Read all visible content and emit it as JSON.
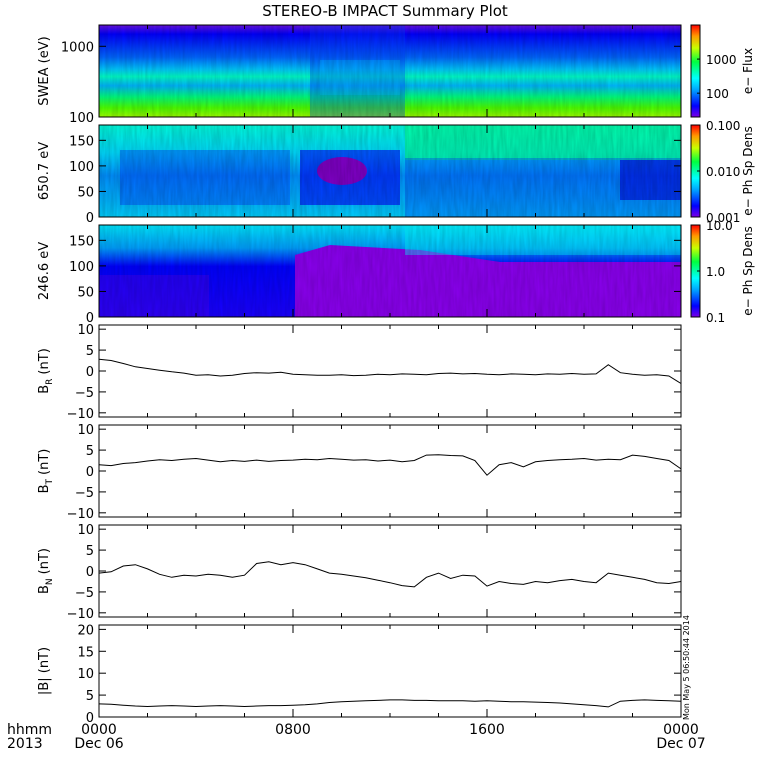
{
  "title": "STEREO-B IMPACT Summary Plot",
  "timestamp": "Mon May  5 06:50:44 2014",
  "time_axis": {
    "corner_top": "hhmm",
    "corner_bottom": "2013",
    "ticks": [
      {
        "t": 0,
        "label": "0000",
        "date": "Dec 06"
      },
      {
        "t": 8,
        "label": "0800",
        "date": ""
      },
      {
        "t": 16,
        "label": "1600",
        "date": ""
      },
      {
        "t": 24,
        "label": "0000",
        "date": "Dec 07"
      }
    ]
  },
  "colors": {
    "axis": "#000000",
    "trace": "#000000"
  },
  "chart_data": [
    {
      "type": "heatmap",
      "ylabel": "SWEA (eV)",
      "yscale": "log",
      "ylim": [
        100,
        2000
      ],
      "yticks": [
        {
          "v": 100,
          "label": "100"
        },
        {
          "v": 1000,
          "label": "1000"
        }
      ],
      "colorbar_label": "e− Flux",
      "colorbar_scale": "log",
      "colorbar_range": [
        20,
        10000
      ],
      "colorbar_ticks": [
        {
          "v": 100,
          "label": "100"
        },
        {
          "v": 1000,
          "label": "1000"
        }
      ]
    },
    {
      "type": "heatmap",
      "ylabel": "650.7 eV",
      "yscale": "linear",
      "ylim": [
        0,
        180
      ],
      "yticks": [
        {
          "v": 0,
          "label": "0"
        },
        {
          "v": 50,
          "label": "50"
        },
        {
          "v": 100,
          "label": "100"
        },
        {
          "v": 150,
          "label": "150"
        }
      ],
      "colorbar_label": "e− Ph Sp Dens",
      "colorbar_scale": "log",
      "colorbar_range": [
        0.001,
        0.1
      ],
      "colorbar_ticks": [
        {
          "v": 0.001,
          "label": "0.001"
        },
        {
          "v": 0.01,
          "label": "0.010"
        },
        {
          "v": 0.1,
          "label": "0.100"
        }
      ]
    },
    {
      "type": "heatmap",
      "ylabel": "246.6 eV",
      "yscale": "linear",
      "ylim": [
        0,
        180
      ],
      "yticks": [
        {
          "v": 0,
          "label": "0"
        },
        {
          "v": 50,
          "label": "50"
        },
        {
          "v": 100,
          "label": "100"
        },
        {
          "v": 150,
          "label": "150"
        }
      ],
      "colorbar_label": "e− Ph Sp Dens",
      "colorbar_scale": "log",
      "colorbar_range": [
        0.1,
        10
      ],
      "colorbar_ticks": [
        {
          "v": 0.1,
          "label": "0.1"
        },
        {
          "v": 1,
          "label": "1.0"
        },
        {
          "v": 10,
          "label": "10.0"
        }
      ]
    },
    {
      "type": "line",
      "ylabel": "B",
      "ylabel_sub": "R",
      "ylabel_unit": "(nT)",
      "ylim": [
        -11,
        11
      ],
      "yticks": [
        {
          "v": -10,
          "label": "−10"
        },
        {
          "v": -5,
          "label": "−5"
        },
        {
          "v": 0,
          "label": "0"
        },
        {
          "v": 5,
          "label": "5"
        },
        {
          "v": 10,
          "label": "10"
        }
      ],
      "series": [
        {
          "x": [
            0,
            0.5,
            1,
            1.5,
            2,
            2.5,
            3,
            3.5,
            4,
            4.5,
            5,
            5.5,
            6,
            6.5,
            7,
            7.5,
            8,
            8.5,
            9,
            9.5,
            10,
            10.5,
            11,
            11.5,
            12,
            12.5,
            13,
            13.5,
            14,
            14.5,
            15,
            15.5,
            16,
            16.5,
            17,
            17.5,
            18,
            18.5,
            19,
            19.5,
            20,
            20.5,
            21,
            21.5,
            22,
            22.5,
            23,
            23.5,
            24
          ],
          "y": [
            2.8,
            2.5,
            1.8,
            1.0,
            0.6,
            0.2,
            -0.2,
            -0.5,
            -1.0,
            -0.9,
            -1.2,
            -1.0,
            -0.6,
            -0.4,
            -0.5,
            -0.3,
            -0.8,
            -0.9,
            -1.0,
            -1.0,
            -0.9,
            -1.1,
            -1.0,
            -0.8,
            -0.9,
            -0.7,
            -0.8,
            -0.9,
            -0.6,
            -0.5,
            -0.7,
            -0.6,
            -0.8,
            -0.9,
            -0.7,
            -0.8,
            -0.9,
            -0.7,
            -0.8,
            -0.6,
            -0.8,
            -0.7,
            1.5,
            -0.4,
            -0.8,
            -1.0,
            -0.9,
            -1.2,
            -3.0
          ]
        }
      ]
    },
    {
      "type": "line",
      "ylabel": "B",
      "ylabel_sub": "T",
      "ylabel_unit": "(nT)",
      "ylim": [
        -11,
        11
      ],
      "yticks": [
        {
          "v": -10,
          "label": "−10"
        },
        {
          "v": -5,
          "label": "−5"
        },
        {
          "v": 0,
          "label": "0"
        },
        {
          "v": 5,
          "label": "5"
        },
        {
          "v": 10,
          "label": "10"
        }
      ],
      "series": [
        {
          "x": [
            0,
            0.5,
            1,
            1.5,
            2,
            2.5,
            3,
            3.5,
            4,
            4.5,
            5,
            5.5,
            6,
            6.5,
            7,
            7.5,
            8,
            8.5,
            9,
            9.5,
            10,
            10.5,
            11,
            11.5,
            12,
            12.5,
            13,
            13.5,
            14,
            14.5,
            15,
            15.5,
            16,
            16.5,
            17,
            17.5,
            18,
            18.5,
            19,
            19.5,
            20,
            20.5,
            21,
            21.5,
            22,
            22.5,
            23,
            23.5,
            24
          ],
          "y": [
            1.5,
            1.3,
            1.8,
            2.0,
            2.4,
            2.7,
            2.5,
            2.8,
            3.0,
            2.6,
            2.2,
            2.5,
            2.3,
            2.6,
            2.3,
            2.5,
            2.6,
            2.8,
            2.7,
            3.0,
            2.8,
            2.6,
            2.7,
            2.4,
            2.6,
            2.2,
            2.5,
            3.8,
            3.9,
            3.7,
            3.6,
            2.5,
            -1.0,
            1.5,
            2.0,
            1.0,
            2.2,
            2.5,
            2.7,
            2.8,
            3.0,
            2.6,
            2.8,
            2.7,
            3.8,
            3.5,
            3.0,
            2.5,
            0.5
          ]
        }
      ]
    },
    {
      "type": "line",
      "ylabel": "B",
      "ylabel_sub": "N",
      "ylabel_unit": "(nT)",
      "ylim": [
        -11,
        11
      ],
      "yticks": [
        {
          "v": -10,
          "label": "−10"
        },
        {
          "v": -5,
          "label": "−5"
        },
        {
          "v": 0,
          "label": "0"
        },
        {
          "v": 5,
          "label": "5"
        },
        {
          "v": 10,
          "label": "10"
        }
      ],
      "series": [
        {
          "x": [
            0,
            0.5,
            1,
            1.5,
            2,
            2.5,
            3,
            3.5,
            4,
            4.5,
            5,
            5.5,
            6,
            6.5,
            7,
            7.5,
            8,
            8.5,
            9,
            9.5,
            10,
            10.5,
            11,
            11.5,
            12,
            12.5,
            13,
            13.5,
            14,
            14.5,
            15,
            15.5,
            16,
            16.5,
            17,
            17.5,
            18,
            18.5,
            19,
            19.5,
            20,
            20.5,
            21,
            21.5,
            22,
            22.5,
            23,
            23.5,
            24
          ],
          "y": [
            -0.5,
            -0.2,
            1.2,
            1.5,
            0.5,
            -0.8,
            -1.5,
            -1.0,
            -1.2,
            -0.8,
            -1.0,
            -1.5,
            -1.0,
            1.8,
            2.2,
            1.5,
            2.0,
            1.5,
            0.5,
            -0.5,
            -0.8,
            -1.2,
            -1.6,
            -2.2,
            -2.8,
            -3.5,
            -3.8,
            -1.5,
            -0.5,
            -1.8,
            -1.0,
            -1.2,
            -3.6,
            -2.5,
            -3.0,
            -3.2,
            -2.5,
            -2.8,
            -2.3,
            -2.0,
            -2.5,
            -2.8,
            -0.5,
            -1.0,
            -1.5,
            -2.0,
            -2.8,
            -3.0,
            -2.5
          ]
        }
      ]
    },
    {
      "type": "line",
      "ylabel": "|B| (nT)",
      "ylim": [
        0,
        21
      ],
      "yticks": [
        {
          "v": 0,
          "label": "0"
        },
        {
          "v": 5,
          "label": "5"
        },
        {
          "v": 10,
          "label": "10"
        },
        {
          "v": 15,
          "label": "15"
        },
        {
          "v": 20,
          "label": "20"
        }
      ],
      "series": [
        {
          "x": [
            0,
            0.5,
            1,
            1.5,
            2,
            2.5,
            3,
            3.5,
            4,
            4.5,
            5,
            5.5,
            6,
            6.5,
            7,
            7.5,
            8,
            8.5,
            9,
            9.5,
            10,
            10.5,
            11,
            11.5,
            12,
            12.5,
            13,
            13.5,
            14,
            14.5,
            15,
            15.5,
            16,
            16.5,
            17,
            17.5,
            18,
            18.5,
            19,
            19.5,
            20,
            20.5,
            21,
            21.5,
            22,
            22.5,
            23,
            23.5,
            24
          ],
          "y": [
            3.0,
            2.9,
            2.7,
            2.5,
            2.4,
            2.5,
            2.6,
            2.5,
            2.4,
            2.5,
            2.6,
            2.5,
            2.4,
            2.5,
            2.6,
            2.6,
            2.7,
            2.8,
            3.0,
            3.3,
            3.5,
            3.6,
            3.7,
            3.8,
            3.9,
            3.9,
            3.8,
            3.8,
            3.7,
            3.7,
            3.7,
            3.6,
            3.7,
            3.6,
            3.5,
            3.5,
            3.4,
            3.3,
            3.2,
            3.0,
            2.8,
            2.6,
            2.3,
            3.6,
            3.8,
            3.9,
            3.8,
            3.7,
            3.6
          ]
        }
      ]
    }
  ]
}
